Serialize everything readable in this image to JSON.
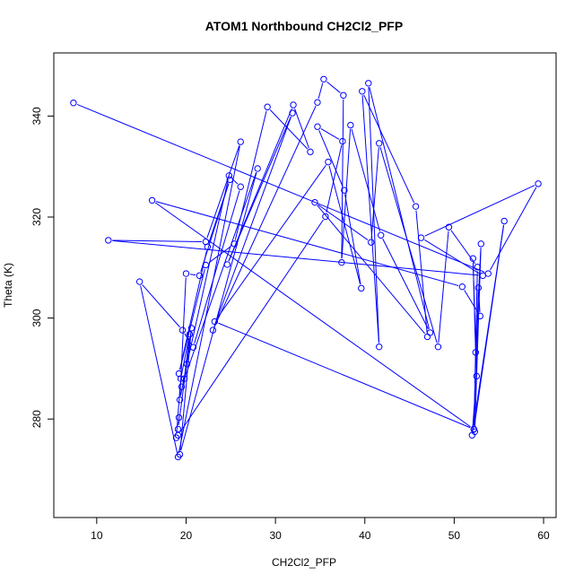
{
  "chart_data": {
    "type": "scatter",
    "title": "ATOM1 Northbound CH2Cl2_PFP",
    "xlabel": "CH2Cl2_PFP",
    "ylabel": "Theta (K)",
    "xlim": [
      5.2,
      61.4
    ],
    "ylim": [
      260.5,
      352.5
    ],
    "xticks": [
      10,
      20,
      30,
      40,
      50,
      60
    ],
    "yticks": [
      280,
      300,
      320,
      340
    ],
    "grid": false,
    "color": "#0000ff",
    "series_type": "line-with-points",
    "points": [
      [
        7.4,
        342.6
      ],
      [
        53.8,
        308.8
      ],
      [
        59.4,
        326.6
      ],
      [
        46.3,
        315.9
      ],
      [
        53.2,
        308.4
      ],
      [
        11.3,
        315.4
      ],
      [
        22.2,
        315.1
      ],
      [
        26.1,
        334.9
      ],
      [
        19.1,
        272.5
      ],
      [
        14.8,
        307.2
      ],
      [
        19.6,
        297.6
      ],
      [
        20.8,
        294.2
      ],
      [
        26.1,
        326.0
      ],
      [
        24.8,
        328.2
      ],
      [
        20.1,
        290.9
      ],
      [
        19.3,
        283.8
      ],
      [
        20.0,
        308.8
      ],
      [
        21.5,
        308.4
      ],
      [
        24.9,
        327.4
      ],
      [
        22.4,
        314.1
      ],
      [
        19.2,
        289.0
      ],
      [
        22.2,
        310.5
      ],
      [
        25.4,
        314.7
      ],
      [
        29.1,
        341.8
      ],
      [
        33.9,
        332.9
      ],
      [
        32.0,
        342.2
      ],
      [
        24.6,
        310.6
      ],
      [
        31.9,
        340.6
      ],
      [
        23.0,
        297.6
      ],
      [
        34.7,
        342.7
      ],
      [
        35.4,
        347.3
      ],
      [
        37.6,
        344.1
      ],
      [
        37.4,
        311.0
      ],
      [
        38.4,
        338.2
      ],
      [
        41.8,
        316.4
      ],
      [
        47.3,
        297.1
      ],
      [
        40.4,
        346.5
      ],
      [
        41.6,
        294.3
      ],
      [
        39.7,
        344.9
      ],
      [
        45.7,
        322.1
      ],
      [
        47.0,
        296.3
      ],
      [
        34.4,
        322.9
      ],
      [
        40.7,
        315.0
      ],
      [
        41.6,
        334.6
      ],
      [
        48.2,
        294.3
      ],
      [
        49.4,
        318.0
      ],
      [
        52.6,
        310.1
      ],
      [
        52.2,
        278.0
      ],
      [
        55.6,
        319.2
      ],
      [
        52.0,
        276.8
      ],
      [
        52.5,
        288.5
      ],
      [
        52.1,
        311.8
      ],
      [
        52.4,
        293.2
      ],
      [
        53.0,
        314.7
      ],
      [
        52.3,
        277.5
      ],
      [
        52.7,
        306.0
      ],
      [
        52.9,
        300.4
      ],
      [
        50.9,
        306.2
      ],
      [
        16.2,
        323.3
      ],
      [
        52.2,
        278.0
      ],
      [
        23.2,
        299.3
      ],
      [
        35.9,
        330.9
      ],
      [
        39.6,
        305.9
      ],
      [
        37.7,
        325.3
      ],
      [
        34.7,
        337.9
      ],
      [
        37.5,
        335.0
      ],
      [
        35.6,
        320.1
      ],
      [
        19.1,
        276.8
      ],
      [
        18.9,
        276.3
      ],
      [
        19.4,
        288.0
      ],
      [
        20.4,
        296.8
      ],
      [
        19.8,
        288.0
      ],
      [
        19.5,
        286.4
      ],
      [
        28.0,
        329.6
      ],
      [
        19.3,
        273.0
      ],
      [
        20.6,
        298.0
      ],
      [
        19.1,
        278.0
      ],
      [
        19.2,
        280.3
      ]
    ]
  }
}
